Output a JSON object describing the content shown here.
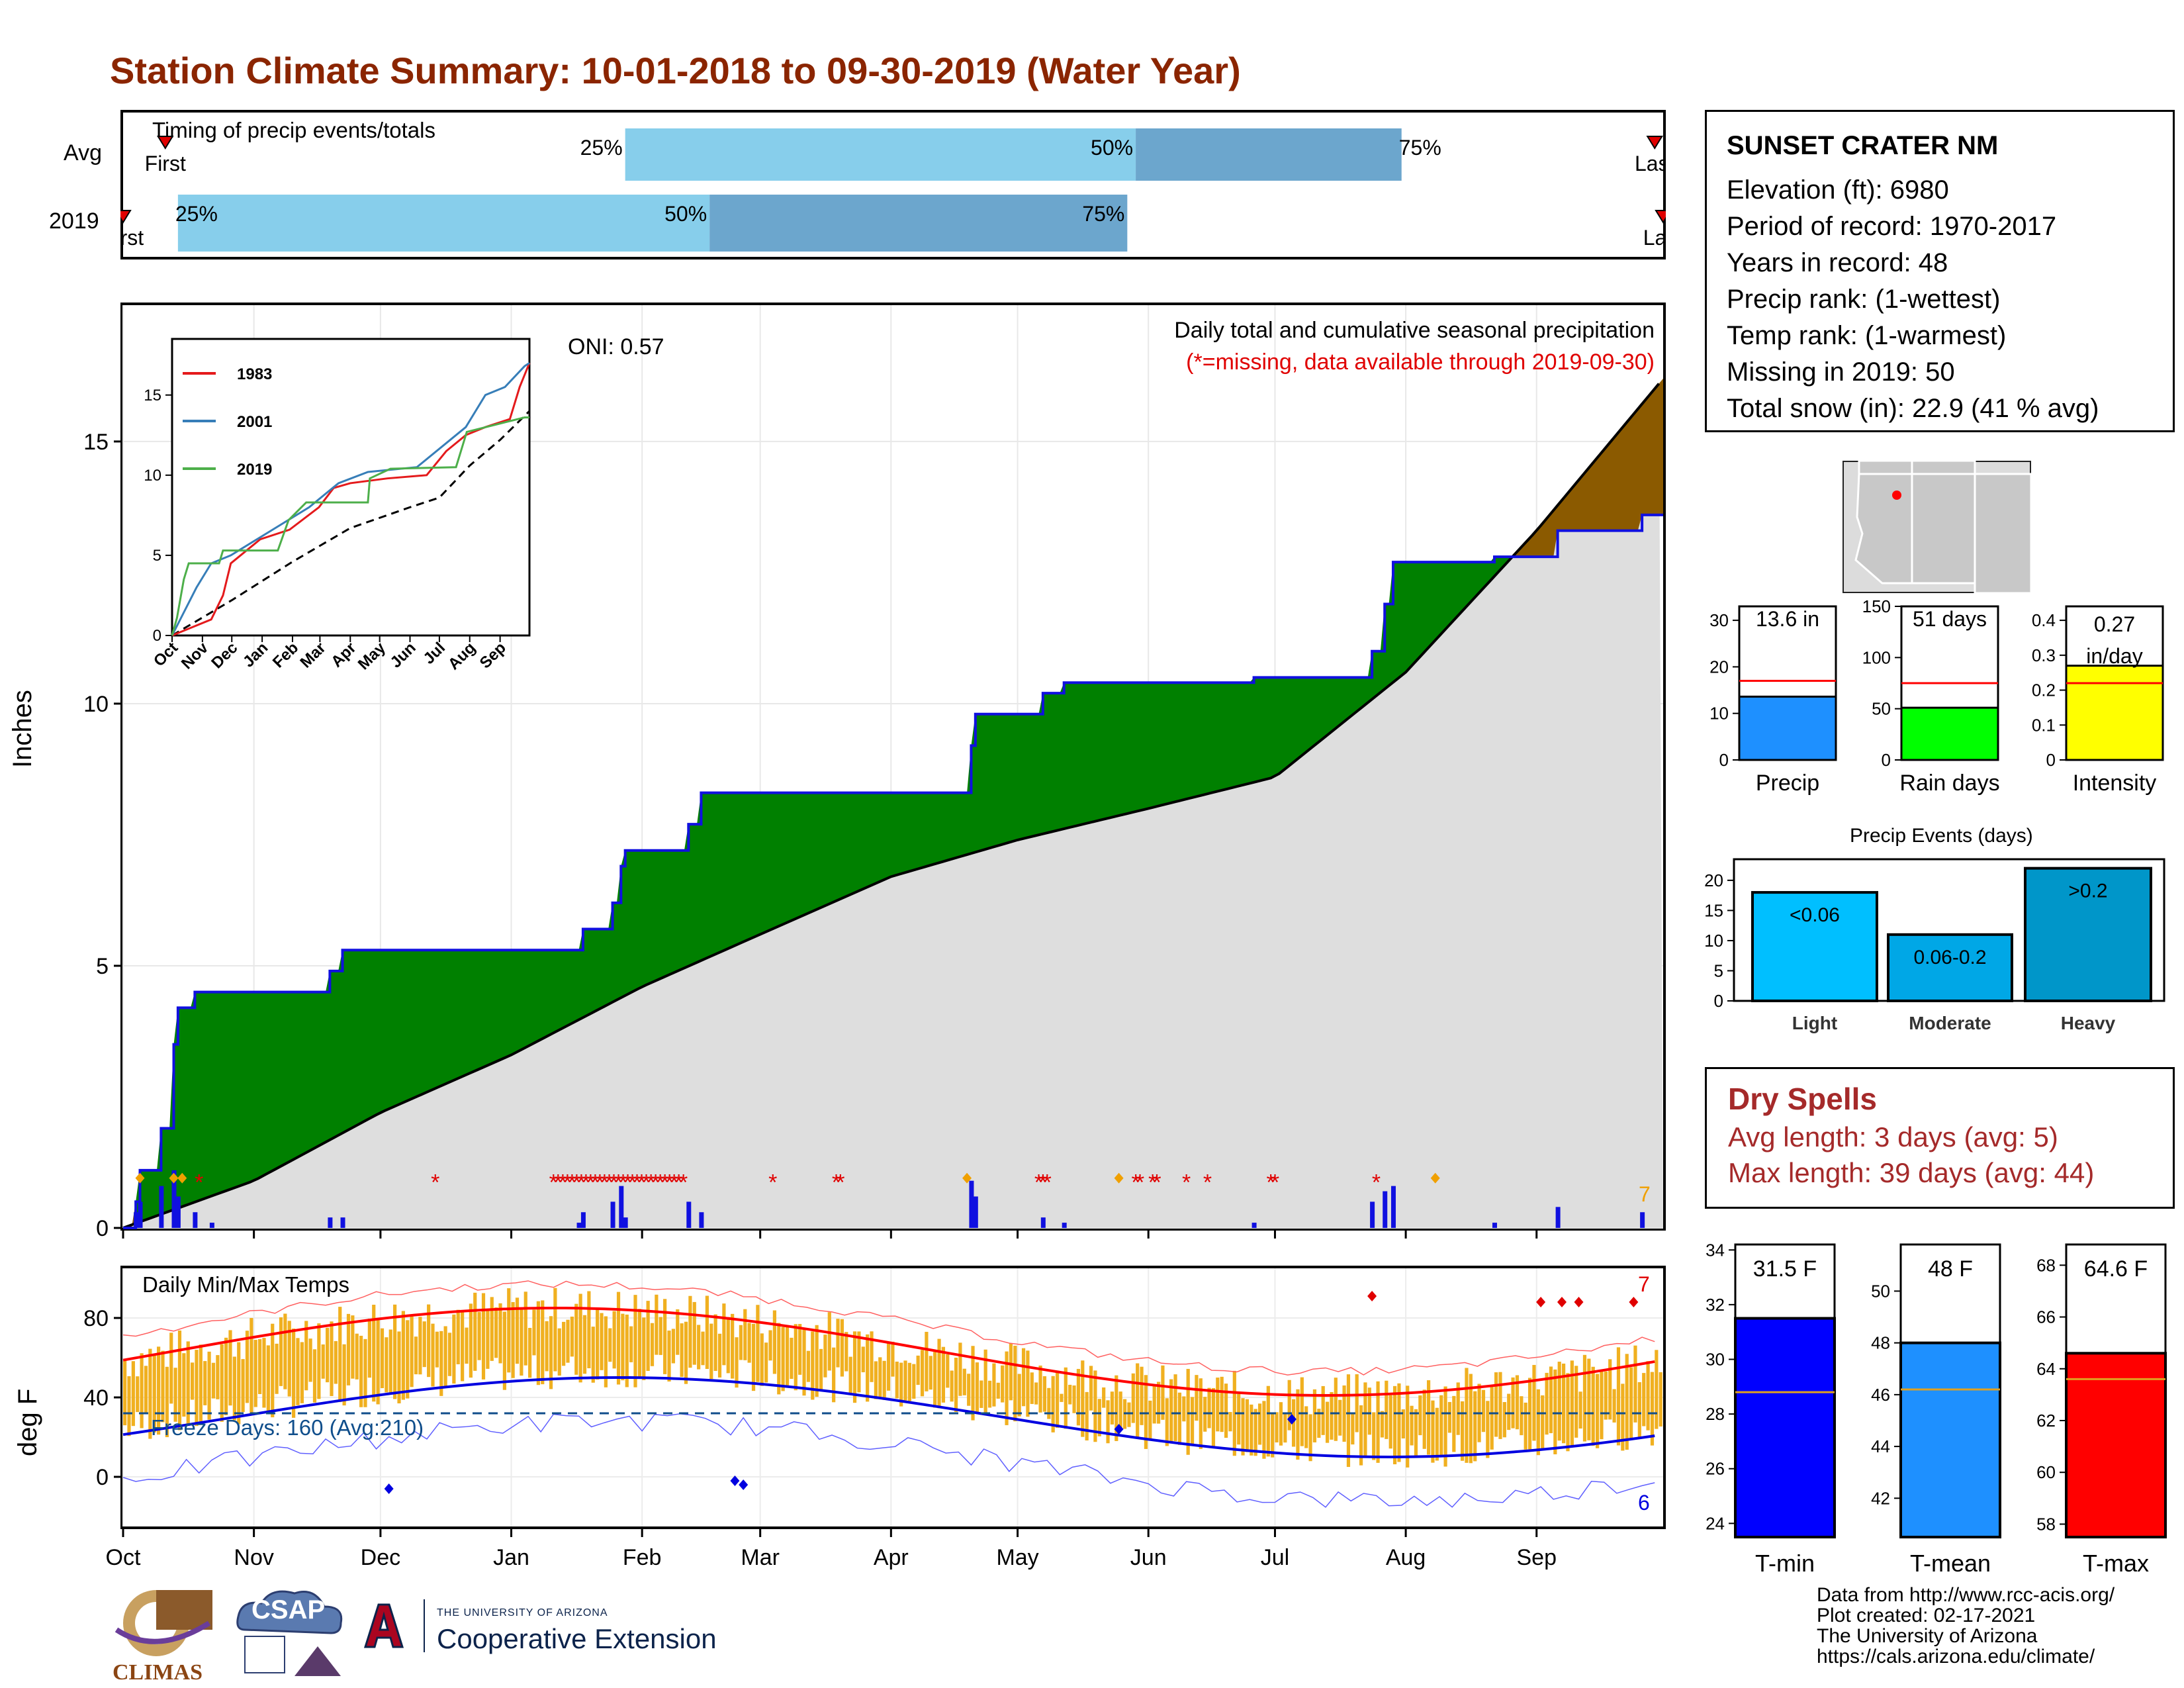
{
  "title": "Station Climate Summary: 10-01-2018 to 09-30-2019 (Water Year)",
  "timing": {
    "label": "Timing of precip events/totals",
    "rows": [
      {
        "name": "Avg",
        "first_day": 10,
        "p25": 119,
        "p50": 240,
        "p75": 303,
        "last_day": 363,
        "first_label": "First",
        "last_label": "Last"
      },
      {
        "name": "2019",
        "first_day": 0,
        "p25": 13,
        "p50": 139,
        "p75": 238,
        "last_day": 365,
        "first_label": "First",
        "last_label": "Last"
      }
    ],
    "pct_labels": [
      "25%",
      "50%",
      "75%"
    ]
  },
  "precip": {
    "header": "Daily total and cumulative seasonal precipitation",
    "missing_note": "(*=missing, data available through 2019-09-30)",
    "oni": "ONI: 0.57",
    "ylabel": "Inches",
    "yticks": [
      0,
      5,
      10,
      15
    ],
    "ylim": [
      0,
      17.6
    ],
    "corner_count": "7"
  },
  "inset": {
    "yticks": [
      0,
      5,
      10,
      15
    ],
    "xticks": [
      "Oct",
      "Nov",
      "Dec",
      "Jan",
      "Feb",
      "Mar",
      "Apr",
      "May",
      "Jun",
      "Jul",
      "Aug",
      "Sep"
    ],
    "legend": [
      {
        "name": "1983",
        "color": "#e41a1c"
      },
      {
        "name": "2001",
        "color": "#377eb8"
      },
      {
        "name": "2019",
        "color": "#4daf4a"
      }
    ]
  },
  "temps": {
    "label": "Daily Min/Max Temps",
    "freeze": "Freeze Days: 160 (Avg:210)",
    "ylabel": "deg F",
    "yticks": [
      0,
      40,
      80
    ],
    "ylim": [
      -25,
      105
    ],
    "count_high": "7",
    "count_low": "6"
  },
  "months": [
    "Oct",
    "Nov",
    "Dec",
    "Jan",
    "Feb",
    "Mar",
    "Apr",
    "May",
    "Jun",
    "Jul",
    "Aug",
    "Sep"
  ],
  "station": {
    "name": "SUNSET CRATER NM",
    "lines": [
      "Elevation (ft): 6980",
      "Period of record: 1970-2017",
      "Years in record: 48",
      "Precip rank:  (1-wettest)",
      "Temp rank:  (1-warmest)",
      "Missing in 2019: 50",
      "Total snow (in): 22.9 (41 % avg)"
    ]
  },
  "mini_bars": [
    {
      "name": "Precip",
      "label": "13.6 in",
      "value": 13.6,
      "avg": 17,
      "max": 33,
      "ticks": [
        0,
        10,
        20,
        30
      ],
      "color": "#1e90ff"
    },
    {
      "name": "Rain days",
      "label": "51 days",
      "value": 51,
      "avg": 75,
      "max": 150,
      "ticks": [
        0,
        50,
        100,
        150
      ],
      "color": "#00ff00"
    },
    {
      "name": "Intensity",
      "label": "0.27 in/day",
      "value": 0.27,
      "avg": 0.22,
      "max": 0.44,
      "ticks": [
        0.0,
        0.1,
        0.2,
        0.3,
        0.4
      ],
      "color": "#ffff00"
    }
  ],
  "events": {
    "title": "Precip Events (days)",
    "ticks": [
      0,
      5,
      10,
      15,
      20
    ],
    "bars": [
      {
        "cat": "Light",
        "label": "<0.06",
        "value": 18,
        "color": "#00bfff"
      },
      {
        "cat": "Moderate",
        "label": "0.06-0.2",
        "value": 11,
        "color": "#00a7e6"
      },
      {
        "cat": "Heavy",
        "label": ">0.2",
        "value": 22,
        "color": "#0096c9"
      }
    ]
  },
  "dry": {
    "title": "Dry Spells",
    "avg": "Avg length: 3 days (avg: 5)",
    "max": "Max length: 39 days (avg: 44)"
  },
  "temp_bars": [
    {
      "name": "T-min",
      "label": "31.5 F",
      "value": 31.5,
      "avg": 28.8,
      "min": 23.5,
      "max": 34.2,
      "ticks": [
        24,
        26,
        28,
        30,
        32,
        34
      ],
      "color": "#0000ff"
    },
    {
      "name": "T-mean",
      "label": "48 F",
      "value": 48,
      "avg": 46.2,
      "min": 40.5,
      "max": 51.8,
      "ticks": [
        42,
        44,
        46,
        48,
        50
      ],
      "color": "#1e90ff"
    },
    {
      "name": "T-max",
      "label": "64.6 F",
      "value": 64.6,
      "avg": 63.6,
      "min": 57.5,
      "max": 68.8,
      "ticks": [
        58,
        60,
        62,
        64,
        66,
        68
      ],
      "color": "#ff0000"
    }
  ],
  "credits": [
    "Data from http://www.rcc-acis.org/",
    "Plot created: 02-17-2021",
    "The University of Arizona",
    "https://cals.arizona.edu/climate/"
  ],
  "logos": {
    "climas": "CLIMAS",
    "csap": "CSAP",
    "ua_small": "THE UNIVERSITY OF ARIZONA",
    "ua_big": "Cooperative Extension"
  }
}
